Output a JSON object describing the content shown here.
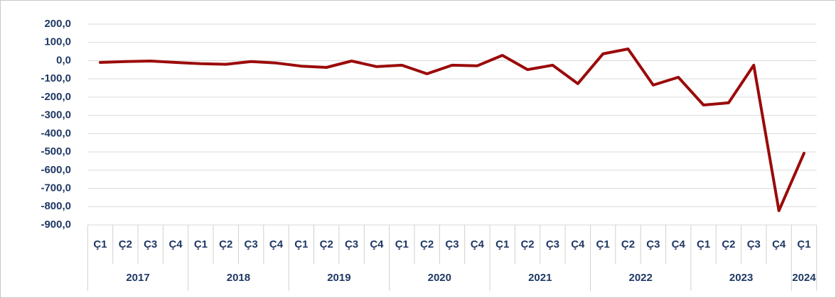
{
  "chart_data": {
    "type": "line",
    "categories": [
      "Ç1",
      "Ç2",
      "Ç3",
      "Ç4",
      "Ç1",
      "Ç2",
      "Ç3",
      "Ç4",
      "Ç1",
      "Ç2",
      "Ç3",
      "Ç4",
      "Ç1",
      "Ç2",
      "Ç3",
      "Ç4",
      "Ç1",
      "Ç2",
      "Ç3",
      "Ç4",
      "Ç1",
      "Ç2",
      "Ç3",
      "Ç4",
      "Ç1",
      "Ç2",
      "Ç3",
      "Ç4",
      "Ç1"
    ],
    "year_groups": [
      {
        "name": "2017",
        "count": 4
      },
      {
        "name": "2018",
        "count": 4
      },
      {
        "name": "2019",
        "count": 4
      },
      {
        "name": "2020",
        "count": 4
      },
      {
        "name": "2021",
        "count": 4
      },
      {
        "name": "2022",
        "count": 4
      },
      {
        "name": "2023",
        "count": 4
      },
      {
        "name": "2024",
        "count": 1
      }
    ],
    "series": [
      {
        "color": "#9b0a0a",
        "values": [
          -10,
          -5,
          -2,
          -10,
          -17,
          -20,
          -5,
          -13,
          -30,
          -37,
          -2,
          -33,
          -25,
          -72,
          -25,
          -28,
          29,
          -49,
          -25,
          -126,
          37,
          64,
          -134,
          -91,
          -243,
          -231,
          -25,
          -822,
          -507
        ]
      }
    ],
    "ylim": [
      -900,
      200
    ],
    "yticks": [
      {
        "value": 200,
        "label": "200,0"
      },
      {
        "value": 100,
        "label": "100,0"
      },
      {
        "value": 0,
        "label": "0,0"
      },
      {
        "value": -100,
        "label": "-100,0"
      },
      {
        "value": -200,
        "label": "-200,0"
      },
      {
        "value": -300,
        "label": "-300,0"
      },
      {
        "value": -400,
        "label": "-400,0"
      },
      {
        "value": -500,
        "label": "-500,0"
      },
      {
        "value": -600,
        "label": "-600,0"
      },
      {
        "value": -700,
        "label": "-700,0"
      },
      {
        "value": -800,
        "label": "-800,0"
      },
      {
        "value": -900,
        "label": "-900,0"
      }
    ],
    "grid": true
  }
}
